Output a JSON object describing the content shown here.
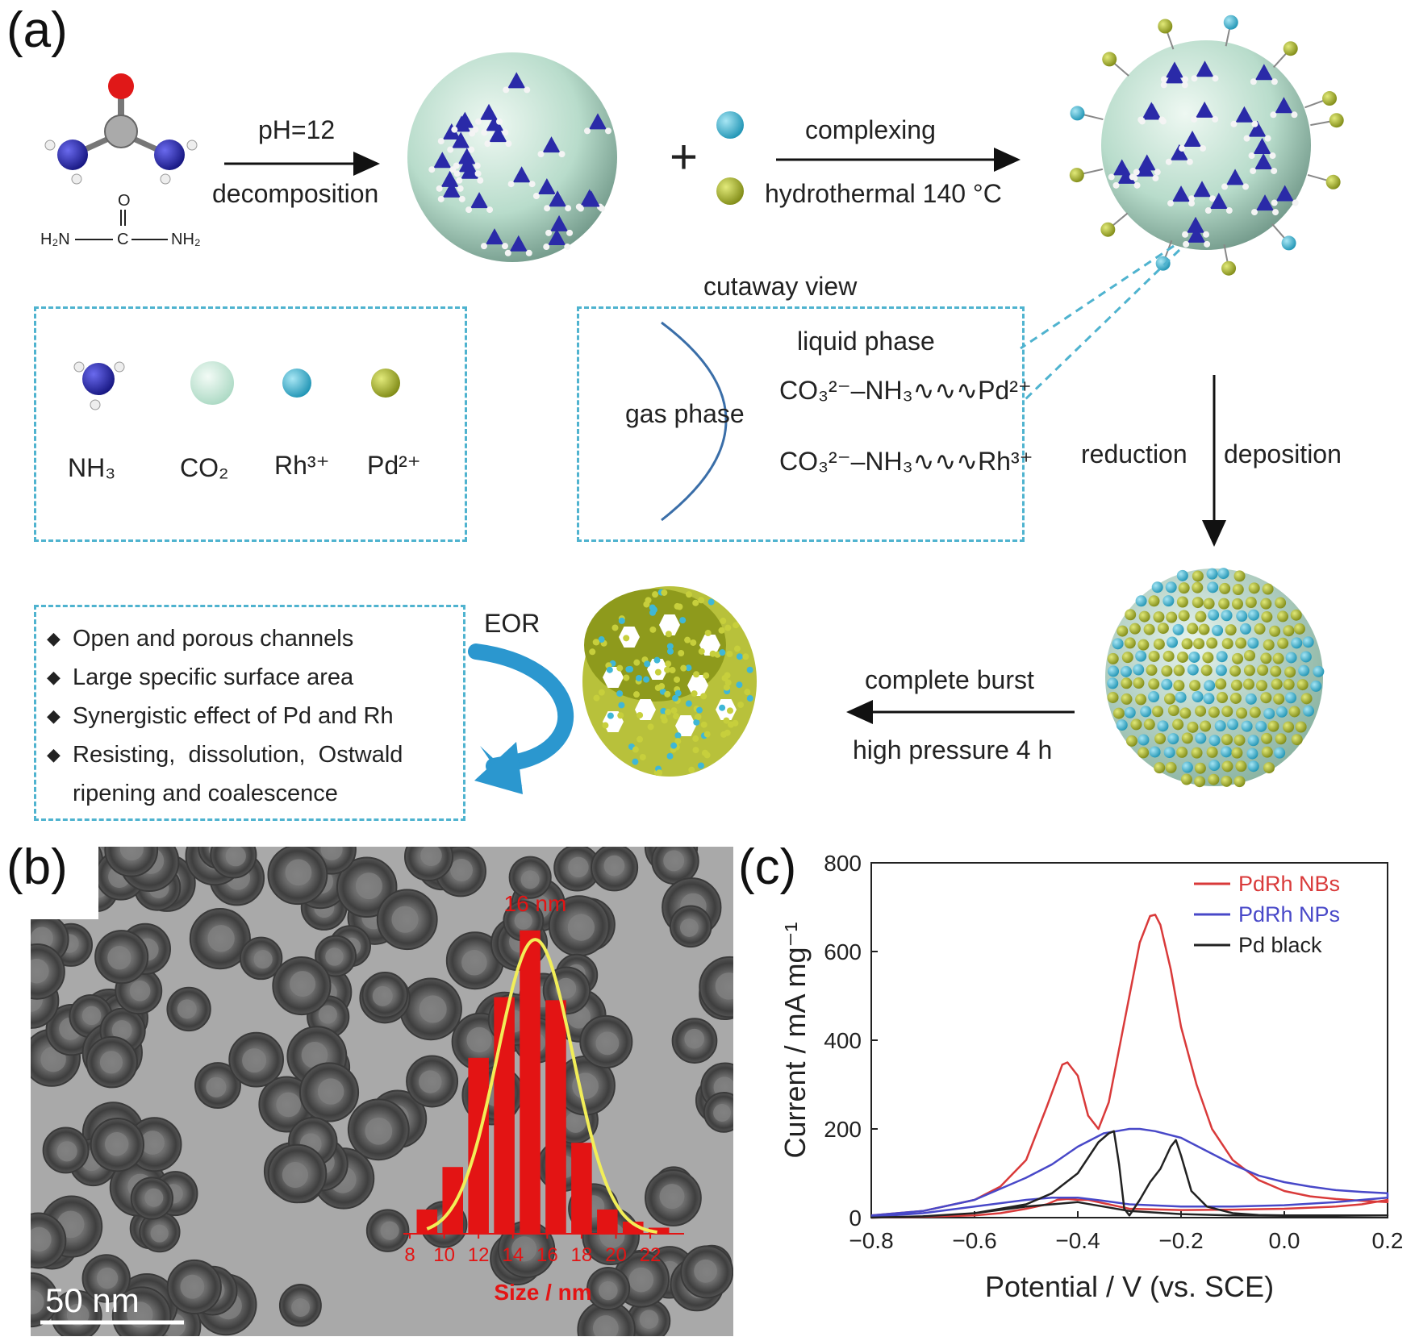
{
  "panel_a": {
    "letter": "(a)",
    "urea_formula": {
      "h2n": "H₂N",
      "c": "C",
      "nh2": "NH₂",
      "o": "O"
    },
    "step1": {
      "top": "pH=12",
      "bottom": "decomposition"
    },
    "plus": "+",
    "step2": {
      "top": "complexing",
      "bottom": "hydrothermal 140 °C"
    },
    "legend": {
      "items": [
        "NH₃",
        "CO₂",
        "Rh³⁺",
        "Pd²⁺"
      ]
    },
    "cutaway": {
      "title": "cutaway view",
      "liquid": "liquid phase",
      "gas": "gas phase",
      "line1": "CO₃²⁻–NH₃∿∿∿Pd²⁺",
      "line2": "CO₃²⁻–NH₃∿∿∿Rh³⁺"
    },
    "step3": {
      "left": "reduction",
      "right": "deposition"
    },
    "step4": {
      "top": "complete burst",
      "bottom": "high pressure 4 h"
    },
    "eor": "EOR",
    "features": [
      "Open and porous channels",
      "Large specific surface area",
      "Synergistic effect of Pd and Rh",
      "Resisting,  dissolution,  Ostwald",
      "ripening and coalescence"
    ],
    "colors": {
      "nh3": "#2a2aa8",
      "co2": "#cfe8dc",
      "rh": "#3fb7d6",
      "pd": "#a9b62a",
      "dash": "#4fb3cf"
    }
  },
  "panel_b": {
    "letter": "(b)",
    "scale_bar": "50 nm",
    "inset_peak_label": "16 nm",
    "inset_xlabel": "Size / nm"
  },
  "panel_c": {
    "letter": "(c)"
  },
  "chart_data": [
    {
      "type": "bar",
      "title": "16 nm",
      "xlabel": "Size / nm",
      "ylabel": "",
      "x_ticks": [
        8,
        10,
        12,
        14,
        16,
        18,
        20,
        22
      ],
      "bar_centers": [
        9,
        10.5,
        12,
        13.5,
        15,
        16.5,
        18,
        19.5,
        21,
        22.5
      ],
      "values": [
        0.08,
        0.22,
        0.58,
        0.78,
        1.0,
        0.77,
        0.3,
        0.08,
        0.04,
        0.02
      ],
      "xlim": [
        8,
        23.5
      ],
      "ylim": [
        0,
        1.05
      ],
      "fit": {
        "type": "gaussian",
        "mean": 15.3,
        "sigma": 2.2,
        "amplitude": 1.0,
        "color": "#f2ee58"
      },
      "bar_color": "#e31414"
    },
    {
      "type": "line",
      "xlabel": "Potential / V (vs. SCE)",
      "ylabel": "Current / mA mg⁻¹",
      "xlim": [
        -0.8,
        0.2
      ],
      "ylim": [
        0,
        800
      ],
      "x_ticks": [
        -0.8,
        -0.6,
        -0.4,
        -0.2,
        0.0,
        0.2
      ],
      "x_tick_labels": [
        "−0.8",
        "−0.6",
        "−0.4",
        "−0.2",
        "0.0",
        "0.2"
      ],
      "y_ticks": [
        0,
        200,
        400,
        600,
        800
      ],
      "legend_position": "top-right",
      "series": [
        {
          "name": "PdRh NBs",
          "color": "#d93a3a",
          "x": [
            -0.8,
            -0.7,
            -0.6,
            -0.55,
            -0.5,
            -0.46,
            -0.43,
            -0.42,
            -0.4,
            -0.38,
            -0.36,
            -0.34,
            -0.32,
            -0.3,
            -0.28,
            -0.26,
            -0.25,
            -0.24,
            -0.22,
            -0.2,
            -0.17,
            -0.14,
            -0.1,
            -0.05,
            0.0,
            0.05,
            0.1,
            0.15,
            0.2,
            0.2,
            0.15,
            0.1,
            0.0,
            -0.1,
            -0.2,
            -0.3,
            -0.32,
            -0.34,
            -0.36,
            -0.38,
            -0.4,
            -0.42,
            -0.44,
            -0.46,
            -0.5,
            -0.55,
            -0.6,
            -0.7,
            -0.8
          ],
          "y": [
            5,
            15,
            40,
            70,
            130,
            250,
            345,
            350,
            320,
            230,
            200,
            260,
            380,
            500,
            620,
            680,
            683,
            660,
            560,
            430,
            300,
            200,
            130,
            85,
            60,
            48,
            42,
            38,
            35,
            40,
            30,
            25,
            20,
            18,
            17,
            20,
            25,
            30,
            35,
            40,
            40,
            42,
            40,
            30,
            20,
            10,
            5,
            2,
            0
          ]
        },
        {
          "name": "PdRh NPs",
          "color": "#4848c8",
          "x": [
            -0.8,
            -0.7,
            -0.6,
            -0.5,
            -0.45,
            -0.4,
            -0.35,
            -0.3,
            -0.28,
            -0.25,
            -0.2,
            -0.15,
            -0.1,
            -0.05,
            0.0,
            0.05,
            0.1,
            0.15,
            0.2,
            0.2,
            0.1,
            0.0,
            -0.1,
            -0.2,
            -0.3,
            -0.35,
            -0.4,
            -0.45,
            -0.5,
            -0.6,
            -0.7,
            -0.8
          ],
          "y": [
            5,
            15,
            40,
            90,
            120,
            160,
            190,
            200,
            200,
            195,
            180,
            150,
            120,
            95,
            80,
            70,
            62,
            58,
            55,
            45,
            35,
            28,
            25,
            25,
            30,
            38,
            45,
            45,
            40,
            25,
            10,
            2
          ]
        },
        {
          "name": "Pd black",
          "color": "#222222",
          "x": [
            -0.8,
            -0.7,
            -0.6,
            -0.5,
            -0.45,
            -0.4,
            -0.36,
            -0.34,
            -0.33,
            -0.32,
            -0.31,
            -0.3,
            -0.28,
            -0.26,
            -0.24,
            -0.22,
            -0.21,
            -0.2,
            -0.18,
            -0.15,
            -0.1,
            -0.05,
            0.0,
            0.1,
            0.2,
            0.2,
            0.1,
            0.0,
            -0.1,
            -0.2,
            -0.3,
            -0.35,
            -0.4,
            -0.5,
            -0.6,
            -0.7,
            -0.8
          ],
          "y": [
            0,
            3,
            10,
            30,
            55,
            100,
            170,
            190,
            195,
            120,
            20,
            5,
            40,
            80,
            110,
            160,
            175,
            140,
            60,
            25,
            10,
            6,
            5,
            5,
            5,
            5,
            4,
            4,
            5,
            8,
            15,
            25,
            35,
            25,
            10,
            3,
            0
          ]
        }
      ]
    }
  ]
}
